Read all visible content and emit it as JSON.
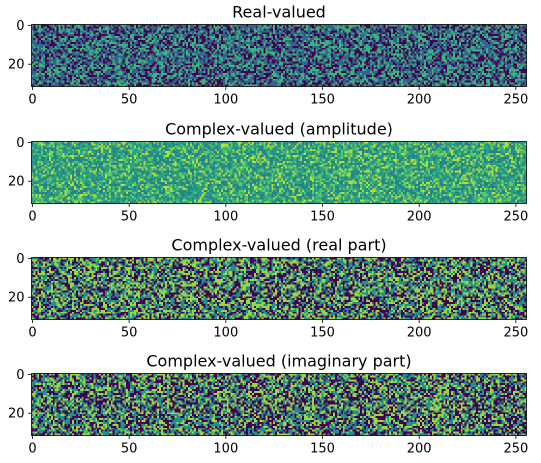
{
  "figure": {
    "background": "#ffffff",
    "colormap": "viridis"
  },
  "chart_data": [
    {
      "type": "heatmap",
      "title": "Real-valued",
      "rows": 32,
      "cols": 256,
      "x_ticks": [
        0,
        50,
        100,
        150,
        200,
        250
      ],
      "y_ticks": [
        0,
        20
      ],
      "value_levels": [
        0,
        0.33,
        0.67
      ],
      "level_weights": [
        0.3,
        0.4,
        0.3
      ],
      "noise": "random"
    },
    {
      "type": "heatmap",
      "title": "Complex-valued (amplitude)",
      "rows": 32,
      "cols": 256,
      "x_ticks": [
        0,
        50,
        100,
        150,
        200,
        250
      ],
      "y_ticks": [
        0,
        20
      ],
      "value_levels": [
        0.45,
        0.6,
        0.75,
        0.9
      ],
      "level_weights": [
        0.35,
        0.3,
        0.22,
        0.13
      ],
      "noise": "random"
    },
    {
      "type": "heatmap",
      "title": "Complex-valued (real part)",
      "rows": 32,
      "cols": 256,
      "x_ticks": [
        0,
        50,
        100,
        150,
        200,
        250
      ],
      "y_ticks": [
        0,
        20
      ],
      "value_levels": [
        0,
        0.5,
        0.85
      ],
      "level_weights": [
        0.35,
        0.35,
        0.3
      ],
      "noise": "random"
    },
    {
      "type": "heatmap",
      "title": "Complex-valued (imaginary part)",
      "rows": 32,
      "cols": 256,
      "x_ticks": [
        0,
        50,
        100,
        150,
        200,
        250
      ],
      "y_ticks": [
        0,
        20
      ],
      "value_levels": [
        0,
        0.5,
        0.85
      ],
      "level_weights": [
        0.38,
        0.34,
        0.28
      ],
      "noise": "random"
    }
  ]
}
